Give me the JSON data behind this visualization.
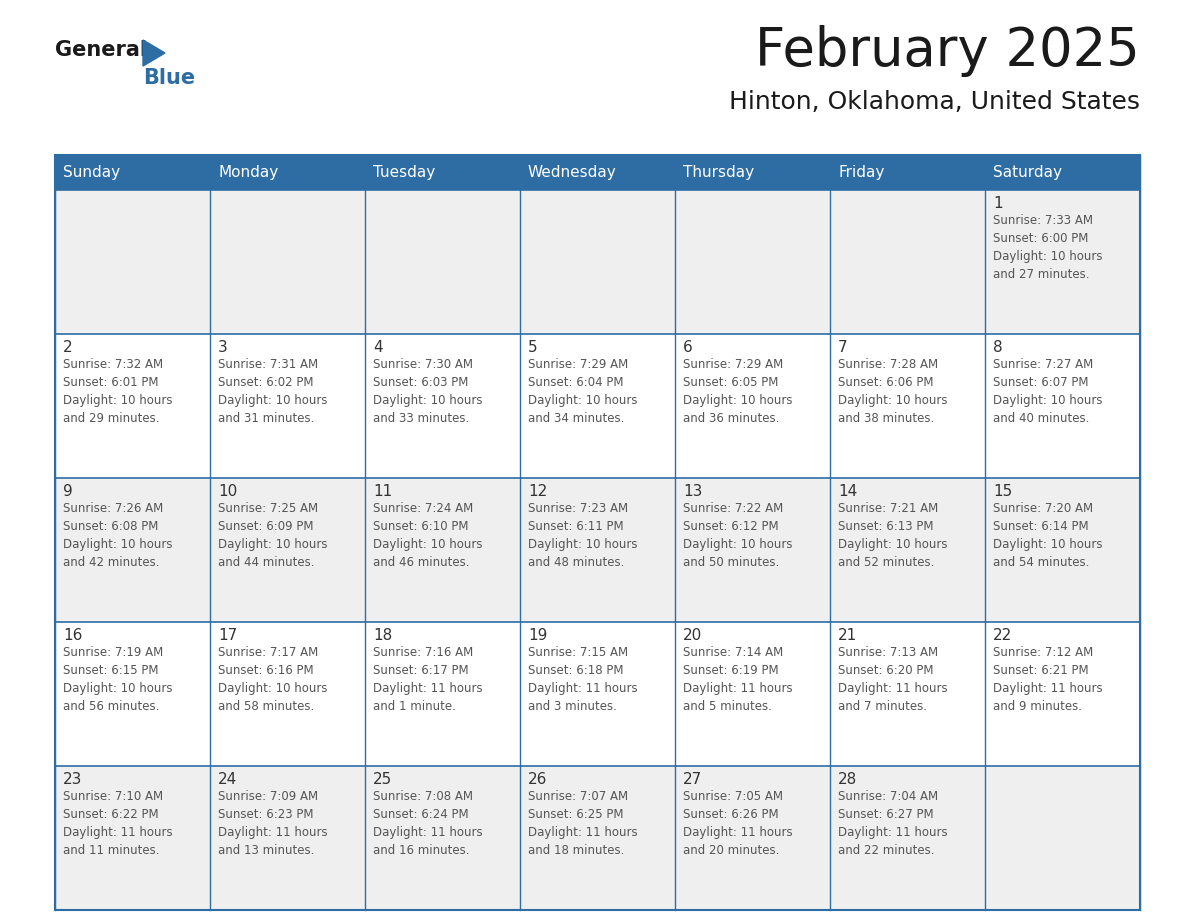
{
  "title": "February 2025",
  "subtitle": "Hinton, Oklahoma, United States",
  "header_bg_color": "#2E6DA4",
  "header_text_color": "#FFFFFF",
  "border_color": "#2E6DA4",
  "text_color": "#333333",
  "info_text_color": "#555555",
  "day_headers": [
    "Sunday",
    "Monday",
    "Tuesday",
    "Wednesday",
    "Thursday",
    "Friday",
    "Saturday"
  ],
  "row_colors": [
    "#EFEFEF",
    "#FFFFFF",
    "#EFEFEF",
    "#FFFFFF",
    "#EFEFEF"
  ],
  "days": [
    {
      "day": 1,
      "col": 6,
      "row": 0,
      "sunrise": "7:33 AM",
      "sunset": "6:00 PM",
      "daylight_line1": "Daylight: 10 hours",
      "daylight_line2": "and 27 minutes."
    },
    {
      "day": 2,
      "col": 0,
      "row": 1,
      "sunrise": "7:32 AM",
      "sunset": "6:01 PM",
      "daylight_line1": "Daylight: 10 hours",
      "daylight_line2": "and 29 minutes."
    },
    {
      "day": 3,
      "col": 1,
      "row": 1,
      "sunrise": "7:31 AM",
      "sunset": "6:02 PM",
      "daylight_line1": "Daylight: 10 hours",
      "daylight_line2": "and 31 minutes."
    },
    {
      "day": 4,
      "col": 2,
      "row": 1,
      "sunrise": "7:30 AM",
      "sunset": "6:03 PM",
      "daylight_line1": "Daylight: 10 hours",
      "daylight_line2": "and 33 minutes."
    },
    {
      "day": 5,
      "col": 3,
      "row": 1,
      "sunrise": "7:29 AM",
      "sunset": "6:04 PM",
      "daylight_line1": "Daylight: 10 hours",
      "daylight_line2": "and 34 minutes."
    },
    {
      "day": 6,
      "col": 4,
      "row": 1,
      "sunrise": "7:29 AM",
      "sunset": "6:05 PM",
      "daylight_line1": "Daylight: 10 hours",
      "daylight_line2": "and 36 minutes."
    },
    {
      "day": 7,
      "col": 5,
      "row": 1,
      "sunrise": "7:28 AM",
      "sunset": "6:06 PM",
      "daylight_line1": "Daylight: 10 hours",
      "daylight_line2": "and 38 minutes."
    },
    {
      "day": 8,
      "col": 6,
      "row": 1,
      "sunrise": "7:27 AM",
      "sunset": "6:07 PM",
      "daylight_line1": "Daylight: 10 hours",
      "daylight_line2": "and 40 minutes."
    },
    {
      "day": 9,
      "col": 0,
      "row": 2,
      "sunrise": "7:26 AM",
      "sunset": "6:08 PM",
      "daylight_line1": "Daylight: 10 hours",
      "daylight_line2": "and 42 minutes."
    },
    {
      "day": 10,
      "col": 1,
      "row": 2,
      "sunrise": "7:25 AM",
      "sunset": "6:09 PM",
      "daylight_line1": "Daylight: 10 hours",
      "daylight_line2": "and 44 minutes."
    },
    {
      "day": 11,
      "col": 2,
      "row": 2,
      "sunrise": "7:24 AM",
      "sunset": "6:10 PM",
      "daylight_line1": "Daylight: 10 hours",
      "daylight_line2": "and 46 minutes."
    },
    {
      "day": 12,
      "col": 3,
      "row": 2,
      "sunrise": "7:23 AM",
      "sunset": "6:11 PM",
      "daylight_line1": "Daylight: 10 hours",
      "daylight_line2": "and 48 minutes."
    },
    {
      "day": 13,
      "col": 4,
      "row": 2,
      "sunrise": "7:22 AM",
      "sunset": "6:12 PM",
      "daylight_line1": "Daylight: 10 hours",
      "daylight_line2": "and 50 minutes."
    },
    {
      "day": 14,
      "col": 5,
      "row": 2,
      "sunrise": "7:21 AM",
      "sunset": "6:13 PM",
      "daylight_line1": "Daylight: 10 hours",
      "daylight_line2": "and 52 minutes."
    },
    {
      "day": 15,
      "col": 6,
      "row": 2,
      "sunrise": "7:20 AM",
      "sunset": "6:14 PM",
      "daylight_line1": "Daylight: 10 hours",
      "daylight_line2": "and 54 minutes."
    },
    {
      "day": 16,
      "col": 0,
      "row": 3,
      "sunrise": "7:19 AM",
      "sunset": "6:15 PM",
      "daylight_line1": "Daylight: 10 hours",
      "daylight_line2": "and 56 minutes."
    },
    {
      "day": 17,
      "col": 1,
      "row": 3,
      "sunrise": "7:17 AM",
      "sunset": "6:16 PM",
      "daylight_line1": "Daylight: 10 hours",
      "daylight_line2": "and 58 minutes."
    },
    {
      "day": 18,
      "col": 2,
      "row": 3,
      "sunrise": "7:16 AM",
      "sunset": "6:17 PM",
      "daylight_line1": "Daylight: 11 hours",
      "daylight_line2": "and 1 minute."
    },
    {
      "day": 19,
      "col": 3,
      "row": 3,
      "sunrise": "7:15 AM",
      "sunset": "6:18 PM",
      "daylight_line1": "Daylight: 11 hours",
      "daylight_line2": "and 3 minutes."
    },
    {
      "day": 20,
      "col": 4,
      "row": 3,
      "sunrise": "7:14 AM",
      "sunset": "6:19 PM",
      "daylight_line1": "Daylight: 11 hours",
      "daylight_line2": "and 5 minutes."
    },
    {
      "day": 21,
      "col": 5,
      "row": 3,
      "sunrise": "7:13 AM",
      "sunset": "6:20 PM",
      "daylight_line1": "Daylight: 11 hours",
      "daylight_line2": "and 7 minutes."
    },
    {
      "day": 22,
      "col": 6,
      "row": 3,
      "sunrise": "7:12 AM",
      "sunset": "6:21 PM",
      "daylight_line1": "Daylight: 11 hours",
      "daylight_line2": "and 9 minutes."
    },
    {
      "day": 23,
      "col": 0,
      "row": 4,
      "sunrise": "7:10 AM",
      "sunset": "6:22 PM",
      "daylight_line1": "Daylight: 11 hours",
      "daylight_line2": "and 11 minutes."
    },
    {
      "day": 24,
      "col": 1,
      "row": 4,
      "sunrise": "7:09 AM",
      "sunset": "6:23 PM",
      "daylight_line1": "Daylight: 11 hours",
      "daylight_line2": "and 13 minutes."
    },
    {
      "day": 25,
      "col": 2,
      "row": 4,
      "sunrise": "7:08 AM",
      "sunset": "6:24 PM",
      "daylight_line1": "Daylight: 11 hours",
      "daylight_line2": "and 16 minutes."
    },
    {
      "day": 26,
      "col": 3,
      "row": 4,
      "sunrise": "7:07 AM",
      "sunset": "6:25 PM",
      "daylight_line1": "Daylight: 11 hours",
      "daylight_line2": "and 18 minutes."
    },
    {
      "day": 27,
      "col": 4,
      "row": 4,
      "sunrise": "7:05 AM",
      "sunset": "6:26 PM",
      "daylight_line1": "Daylight: 11 hours",
      "daylight_line2": "and 20 minutes."
    },
    {
      "day": 28,
      "col": 5,
      "row": 4,
      "sunrise": "7:04 AM",
      "sunset": "6:27 PM",
      "daylight_line1": "Daylight: 11 hours",
      "daylight_line2": "and 22 minutes."
    }
  ]
}
